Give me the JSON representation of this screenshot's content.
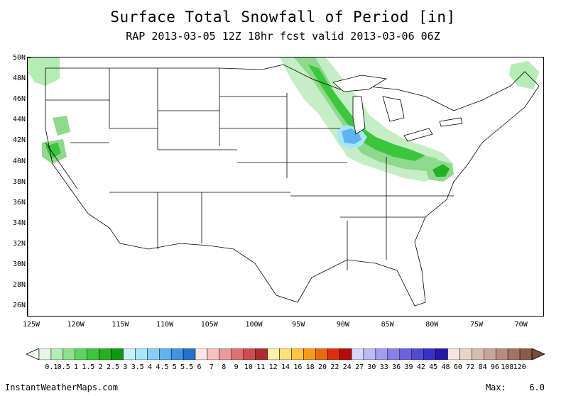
{
  "title": "Surface Total Snowfall of Period [in]",
  "subtitle": "RAP 2013-03-05 12Z 18hr fcst valid 2013-03-06 06Z",
  "lat_labels": [
    "50N",
    "48N",
    "46N",
    "44N",
    "42N",
    "40N",
    "38N",
    "36N",
    "34N",
    "32N",
    "30N",
    "28N",
    "26N"
  ],
  "lon_labels": [
    "125W",
    "120W",
    "115W",
    "110W",
    "105W",
    "100W",
    "95W",
    "90W",
    "85W",
    "80W",
    "75W",
    "70W"
  ],
  "colorbar": {
    "labels": [
      "0.1",
      "0.5",
      "1",
      "1.5",
      "2",
      "2.5",
      "3",
      "3.5",
      "4",
      "4.5",
      "5",
      "5.5",
      "6",
      "7",
      "8",
      "9",
      "10",
      "11",
      "12",
      "14",
      "16",
      "18",
      "20",
      "22",
      "24",
      "27",
      "30",
      "33",
      "36",
      "39",
      "42",
      "45",
      "48",
      "60",
      "72",
      "84",
      "96",
      "108",
      "120"
    ],
    "colors": [
      "#e6f5e6",
      "#b4ecb4",
      "#8ee08e",
      "#5dd45d",
      "#3cc63c",
      "#22b122",
      "#0f990f",
      "#c6f2fa",
      "#a6e6f8",
      "#85cff5",
      "#5fb3ee",
      "#3f94e4",
      "#2270cf",
      "#ffe4e4",
      "#f7c0c0",
      "#eb9a9a",
      "#de7272",
      "#cc4e4e",
      "#b02b2b",
      "#fff0a8",
      "#ffe178",
      "#fcc642",
      "#f79c1a",
      "#ec6a10",
      "#dc2f0c",
      "#b40b0b",
      "#d8d6fb",
      "#bdb8f6",
      "#a29cf2",
      "#8780ea",
      "#6b63de",
      "#524ad2",
      "#3a2fc3",
      "#2616aa",
      "#f3e6e0",
      "#e7d3c7",
      "#d8bcae",
      "#c9a595",
      "#b78e7d",
      "#a27464",
      "#8a5b4b"
    ]
  },
  "footer": {
    "site": "InstantWeatherMaps.com",
    "max_label": "Max:",
    "max_value": "6.0"
  },
  "legend_unit": "in"
}
